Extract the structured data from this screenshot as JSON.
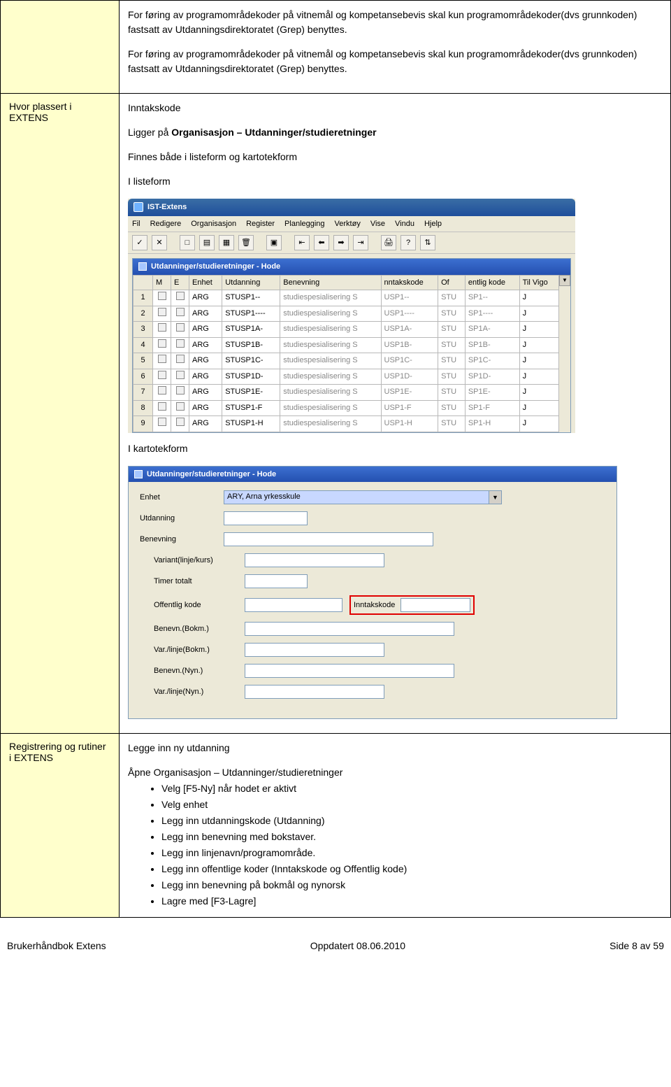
{
  "row1": {
    "p1": "For føring av programområdekoder på vitnemål og kompetansebevis skal kun programområdekoder(dvs grunnkoden) fastsatt av Utdanningsdirektoratet (Grep) benyttes.",
    "p2": "For føring av programområdekoder på vitnemål og kompetansebevis skal kun programområdekoder(dvs grunnkoden) fastsatt av Utdanningsdirektoratet (Grep) benyttes."
  },
  "row2": {
    "left": "Hvor plassert i EXTENS",
    "subtitle": "Inntakskode",
    "line_pre": "Ligger på ",
    "line_bold": "Organisasjon – Utdanninger/studieretninger",
    "line2": "Finnes både i listeform og kartotekform",
    "lab_listeform": "I listeform",
    "lab_kartotek": "I kartotekform"
  },
  "app": {
    "title": "IST-Extens",
    "menus": [
      "Fil",
      "Redigere",
      "Organisasjon",
      "Register",
      "Planlegging",
      "Verktøy",
      "Vise",
      "Vindu",
      "Hjelp"
    ],
    "toolbar_icons": [
      "✓",
      "✕",
      "□",
      "▤",
      "▦",
      "🗑",
      "▣",
      "⇤",
      "⬅",
      "➡",
      "⇥",
      "🖨",
      "?",
      "⇅"
    ],
    "subtitle": "Utdanninger/studieretninger - Hode",
    "headers": [
      "",
      "M",
      "E",
      "Enhet",
      "Utdanning",
      "Benevning",
      "nntakskode",
      "Of",
      "entlig kode",
      "Til Vigo"
    ],
    "rows": [
      [
        "1",
        "",
        "",
        "ARG",
        "STUSP1--",
        "studiespesialisering S",
        "USP1--",
        "STU",
        "SP1--",
        "J"
      ],
      [
        "2",
        "",
        "",
        "ARG",
        "STUSP1----",
        "studiespesialisering S",
        "USP1----",
        "STU",
        "SP1----",
        "J"
      ],
      [
        "3",
        "",
        "",
        "ARG",
        "STUSP1A-",
        "studiespesialisering S",
        "USP1A-",
        "STU",
        "SP1A-",
        "J"
      ],
      [
        "4",
        "",
        "",
        "ARG",
        "STUSP1B-",
        "studiespesialisering S",
        "USP1B-",
        "STU",
        "SP1B-",
        "J"
      ],
      [
        "5",
        "",
        "",
        "ARG",
        "STUSP1C-",
        "studiespesialisering S",
        "USP1C-",
        "STU",
        "SP1C-",
        "J"
      ],
      [
        "6",
        "",
        "",
        "ARG",
        "STUSP1D-",
        "studiespesialisering S",
        "USP1D-",
        "STU",
        "SP1D-",
        "J"
      ],
      [
        "7",
        "",
        "",
        "ARG",
        "STUSP1E-",
        "studiespesialisering S",
        "USP1E-",
        "STU",
        "SP1E-",
        "J"
      ],
      [
        "8",
        "",
        "",
        "ARG",
        "STUSP1-F",
        "studiespesialisering S",
        "USP1-F",
        "STU",
        "SP1-F",
        "J"
      ],
      [
        "9",
        "",
        "",
        "ARG",
        "STUSP1-H",
        "studiespesialisering S",
        "USP1-H",
        "STU",
        "SP1-H",
        "J"
      ]
    ]
  },
  "kform": {
    "subtitle": "Utdanninger/studieretninger - Hode",
    "labels": {
      "enhet": "Enhet",
      "utdanning": "Utdanning",
      "benevning": "Benevning",
      "variant": "Variant(linje/kurs)",
      "timer": "Timer totalt",
      "offkode": "Offentlig kode",
      "inntakskode": "Inntakskode",
      "benbokm": "Benevn.(Bokm.)",
      "varbokm": "Var./linje(Bokm.)",
      "bennyn": "Benevn.(Nyn.)",
      "varnyn": "Var./linje(Nyn.)"
    },
    "enhet_value": "ARY, Arna yrkesskule"
  },
  "row3": {
    "left": "Registrering og rutiner i EXTENS",
    "heading": "Legge inn ny utdanning",
    "intro": "Åpne Organisasjon – Utdanninger/studieretninger",
    "bullets": [
      "Velg [F5-Ny] når hodet er aktivt",
      "Velg enhet",
      "Legg inn utdanningskode (Utdanning)",
      "Legg inn benevning med bokstaver.",
      "Legg inn linjenavn/programområde.",
      "Legg inn offentlige koder (Inntakskode og Offentlig kode)",
      "Legg inn benevning på bokmål og nynorsk",
      "Lagre med [F3-Lagre]"
    ]
  },
  "footer": {
    "left": "Brukerhåndbok Extens",
    "center": "Oppdatert 08.06.2010",
    "right": "Side 8 av 59"
  },
  "colors": {
    "leftcell_bg": "#ffffcc",
    "titlebar_grad_top": "#3a6ea5",
    "titlebar_grad_bot": "#1f4e9b",
    "redbox": "#e00000"
  }
}
